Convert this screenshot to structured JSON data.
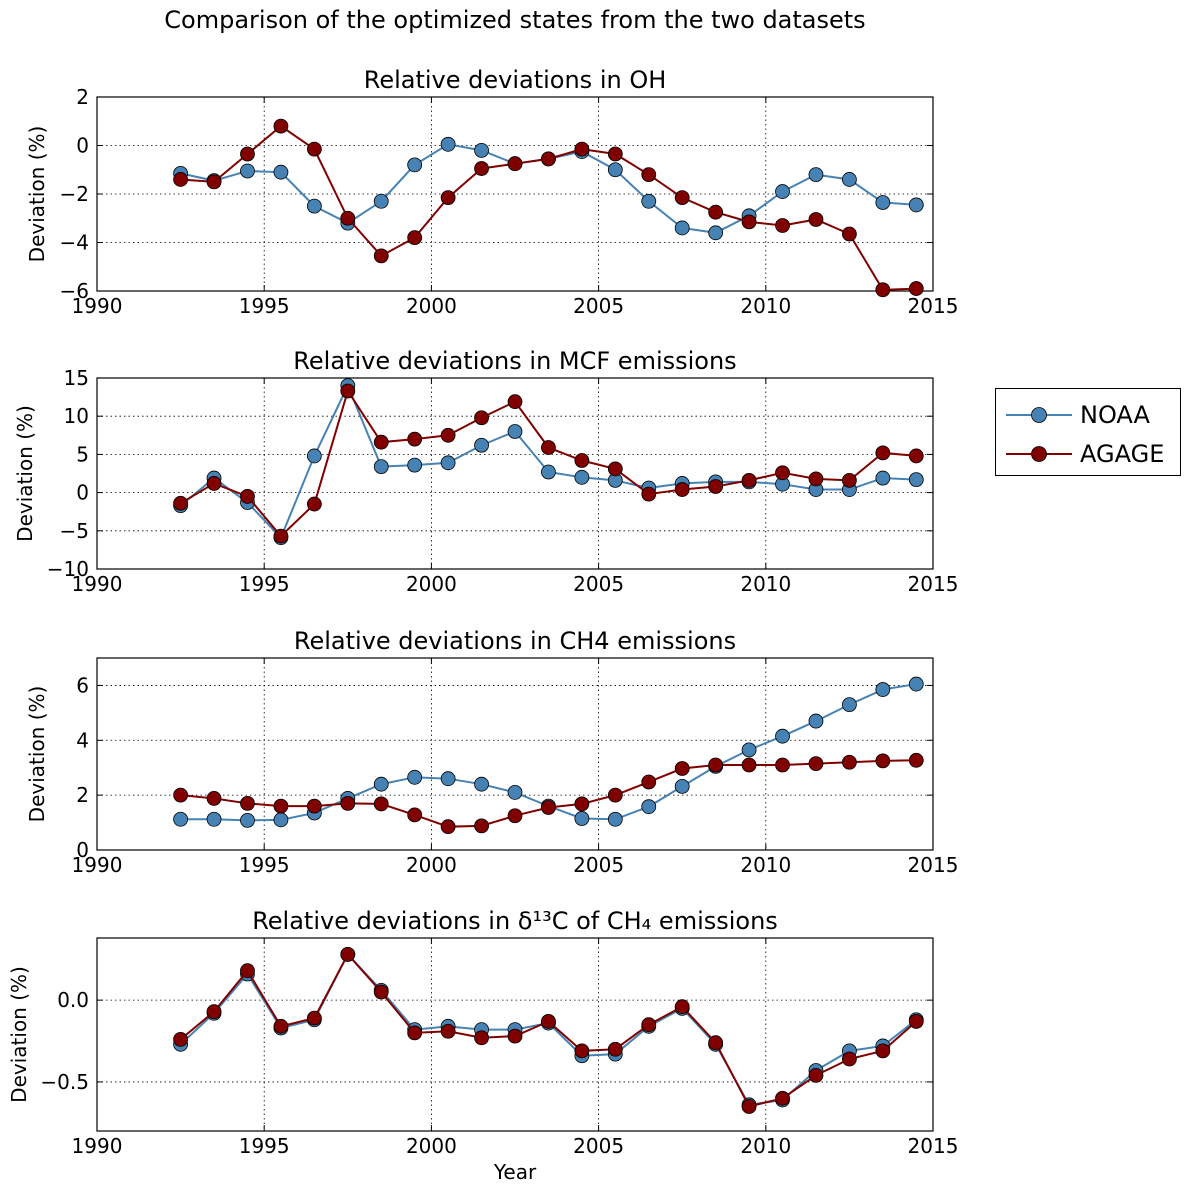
{
  "figure_title": "Comparison of the optimized states from the two datasets",
  "xlabel": "Year",
  "legend": [
    {
      "name": "NOAA",
      "color": "#4682b4"
    },
    {
      "name": "AGAGE",
      "color": "#800000"
    }
  ],
  "chart_data": [
    {
      "type": "line",
      "title": "Relative deviations in OH",
      "ylabel": "Deviation (%)",
      "xlabel": "",
      "xlim": [
        1990,
        2015
      ],
      "ylim": [
        -6,
        2
      ],
      "xticks": [
        1990,
        1995,
        2000,
        2005,
        2010,
        2015
      ],
      "yticks": [
        -6,
        -4,
        -2,
        0,
        2
      ],
      "ytick_labels": [
        "−6",
        "−4",
        "−2",
        "0",
        "2"
      ],
      "grid": true,
      "x": [
        1992.5,
        1993.5,
        1994.5,
        1995.5,
        1996.5,
        1997.5,
        1998.5,
        1999.5,
        2000.5,
        2001.5,
        2002.5,
        2003.5,
        2004.5,
        2005.5,
        2006.5,
        2007.5,
        2008.5,
        2009.5,
        2010.5,
        2011.5,
        2012.5,
        2013.5,
        2014.5
      ],
      "series": [
        {
          "name": "NOAA",
          "color": "#4682b4",
          "values": [
            -1.15,
            -1.45,
            -1.05,
            -1.1,
            -2.5,
            -3.2,
            -2.3,
            -0.8,
            0.05,
            -0.2,
            -0.75,
            -0.55,
            -0.25,
            -1.0,
            -2.3,
            -3.4,
            -3.6,
            -2.9,
            -1.9,
            -1.2,
            -1.4,
            -2.35,
            -2.45
          ]
        },
        {
          "name": "AGAGE",
          "color": "#800000",
          "values": [
            -1.4,
            -1.5,
            -0.35,
            0.8,
            -0.15,
            -3.0,
            -4.55,
            -3.8,
            -2.15,
            -0.95,
            -0.75,
            -0.55,
            -0.15,
            -0.35,
            -1.2,
            -2.15,
            -2.75,
            -3.15,
            -3.3,
            -3.05,
            -3.65,
            -5.95,
            -5.9
          ]
        }
      ]
    },
    {
      "type": "line",
      "title": "Relative deviations in MCF emissions",
      "ylabel": "Deviation (%)",
      "xlabel": "",
      "xlim": [
        1990,
        2015
      ],
      "ylim": [
        -10,
        15
      ],
      "xticks": [
        1990,
        1995,
        2000,
        2005,
        2010,
        2015
      ],
      "yticks": [
        -10,
        -5,
        0,
        5,
        10,
        15
      ],
      "ytick_labels": [
        "−10",
        "−5",
        "0",
        "5",
        "10",
        "15"
      ],
      "grid": true,
      "x": [
        1992.5,
        1993.5,
        1994.5,
        1995.5,
        1996.5,
        1997.5,
        1998.5,
        1999.5,
        2000.5,
        2001.5,
        2002.5,
        2003.5,
        2004.5,
        2005.5,
        2006.5,
        2007.5,
        2008.5,
        2009.5,
        2010.5,
        2011.5,
        2012.5,
        2013.5,
        2014.5
      ],
      "series": [
        {
          "name": "NOAA",
          "color": "#4682b4",
          "values": [
            -1.7,
            1.9,
            -1.3,
            -5.9,
            4.8,
            14.0,
            3.4,
            3.6,
            3.9,
            6.2,
            8.0,
            2.7,
            2.0,
            1.6,
            0.6,
            1.2,
            1.4,
            1.4,
            1.1,
            0.4,
            0.4,
            1.9,
            1.7
          ]
        },
        {
          "name": "AGAGE",
          "color": "#800000",
          "values": [
            -1.4,
            1.2,
            -0.5,
            -5.7,
            -1.5,
            13.3,
            6.6,
            7.0,
            7.5,
            9.8,
            11.9,
            5.9,
            4.2,
            3.1,
            -0.2,
            0.4,
            0.8,
            1.6,
            2.6,
            1.8,
            1.6,
            5.2,
            4.8
          ]
        }
      ]
    },
    {
      "type": "line",
      "title": "Relative deviations in CH4 emissions",
      "ylabel": "Deviation (%)",
      "xlabel": "",
      "xlim": [
        1990,
        2015
      ],
      "ylim": [
        0,
        7
      ],
      "xticks": [
        1990,
        1995,
        2000,
        2005,
        2010,
        2015
      ],
      "yticks": [
        0,
        2,
        4,
        6
      ],
      "ytick_labels": [
        "0",
        "2",
        "4",
        "6"
      ],
      "grid": true,
      "x": [
        1992.5,
        1993.5,
        1994.5,
        1995.5,
        1996.5,
        1997.5,
        1998.5,
        1999.5,
        2000.5,
        2001.5,
        2002.5,
        2003.5,
        2004.5,
        2005.5,
        2006.5,
        2007.5,
        2008.5,
        2009.5,
        2010.5,
        2011.5,
        2012.5,
        2013.5,
        2014.5
      ],
      "series": [
        {
          "name": "NOAA",
          "color": "#4682b4",
          "values": [
            1.12,
            1.12,
            1.08,
            1.1,
            1.35,
            1.88,
            2.4,
            2.65,
            2.6,
            2.4,
            2.1,
            1.6,
            1.15,
            1.12,
            1.58,
            2.32,
            3.05,
            3.65,
            4.15,
            4.7,
            5.3,
            5.85,
            6.05
          ]
        },
        {
          "name": "AGAGE",
          "color": "#800000",
          "values": [
            2.0,
            1.88,
            1.7,
            1.6,
            1.6,
            1.7,
            1.68,
            1.28,
            0.85,
            0.88,
            1.25,
            1.55,
            1.68,
            2.0,
            2.48,
            2.97,
            3.1,
            3.1,
            3.1,
            3.15,
            3.2,
            3.25,
            3.27
          ]
        }
      ]
    },
    {
      "type": "line",
      "title": "Relative deviations in δ¹³C of CH₄ emissions",
      "ylabel": "Deviation (%)",
      "xlabel": "Year",
      "xlim": [
        1990,
        2015
      ],
      "ylim": [
        -0.8,
        0.38
      ],
      "xticks": [
        1990,
        1995,
        2000,
        2005,
        2010,
        2015
      ],
      "yticks": [
        -0.5,
        0.0
      ],
      "ytick_labels": [
        "−0.5",
        "0.0"
      ],
      "grid": true,
      "x": [
        1992.5,
        1993.5,
        1994.5,
        1995.5,
        1996.5,
        1997.5,
        1998.5,
        1999.5,
        2000.5,
        2001.5,
        2002.5,
        2003.5,
        2004.5,
        2005.5,
        2006.5,
        2007.5,
        2008.5,
        2009.5,
        2010.5,
        2011.5,
        2012.5,
        2013.5,
        2014.5
      ],
      "series": [
        {
          "name": "NOAA",
          "color": "#4682b4",
          "values": [
            -0.27,
            -0.08,
            0.16,
            -0.17,
            -0.12,
            0.28,
            0.06,
            -0.18,
            -0.16,
            -0.18,
            -0.18,
            -0.14,
            -0.34,
            -0.33,
            -0.16,
            -0.05,
            -0.27,
            -0.64,
            -0.61,
            -0.43,
            -0.31,
            -0.28,
            -0.12
          ]
        },
        {
          "name": "AGAGE",
          "color": "#800000",
          "values": [
            -0.24,
            -0.07,
            0.18,
            -0.16,
            -0.11,
            0.28,
            0.05,
            -0.2,
            -0.19,
            -0.23,
            -0.22,
            -0.13,
            -0.31,
            -0.3,
            -0.15,
            -0.04,
            -0.26,
            -0.65,
            -0.6,
            -0.46,
            -0.36,
            -0.31,
            -0.13
          ]
        }
      ]
    }
  ]
}
